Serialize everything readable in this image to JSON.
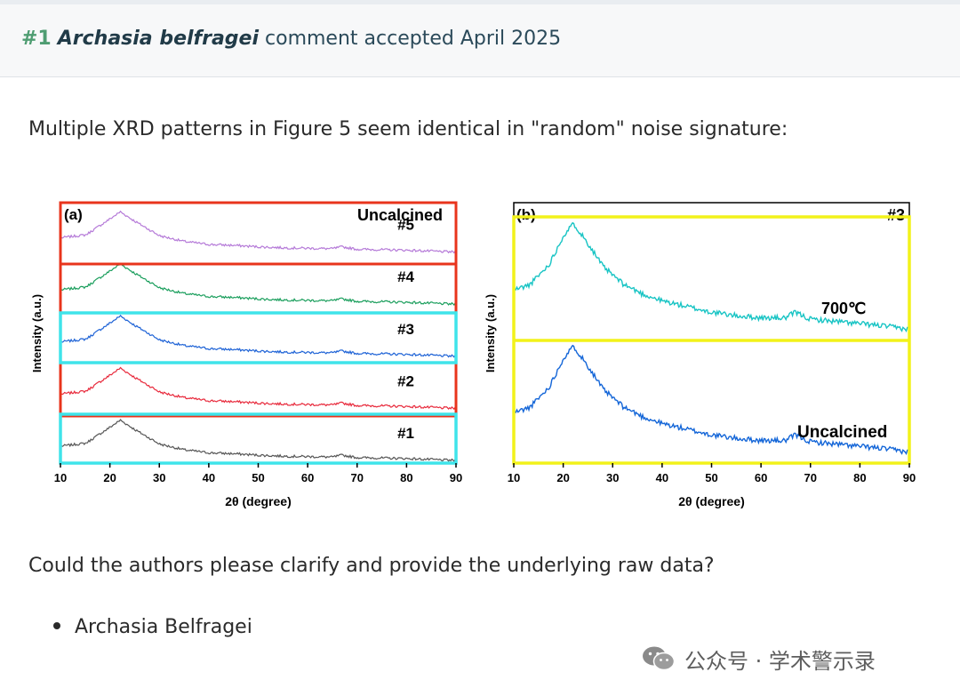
{
  "comment": {
    "number": "#1",
    "author": "Archasia belfragei",
    "status": "comment accepted April 2025"
  },
  "body": {
    "paragraph1": "Multiple XRD patterns in Figure 5 seem identical in \"random\" noise signature:",
    "paragraph2": "Could the authors please clarify and provide the underlying raw data?",
    "signature": "Archasia Belfragei"
  },
  "watermark": {
    "text": "公众号 · 学术警示录",
    "icon": "wechat-icon"
  },
  "colors": {
    "red_box": "#e8341c",
    "cyan_box": "#3fe4ea",
    "yellow_box": "#f2f21a",
    "header_number": "#4f9d72"
  },
  "chart_data": [
    {
      "type": "line",
      "panel_label": "(a)",
      "corner_label": "Uncalcined",
      "xlabel": "2θ (degree)",
      "ylabel": "Intensity (a.u.)",
      "xlim": [
        10,
        90
      ],
      "x_ticks": [
        "10",
        "20",
        "30",
        "40",
        "50",
        "60",
        "70",
        "80",
        "90"
      ],
      "series": [
        {
          "name": "#5",
          "color": "#b57ad8",
          "x": [
            10,
            15,
            20,
            22,
            25,
            30,
            35,
            40,
            45,
            50,
            55,
            60,
            65,
            67,
            70,
            75,
            80,
            85,
            90
          ],
          "y": [
            0.38,
            0.44,
            0.78,
            0.92,
            0.72,
            0.42,
            0.3,
            0.24,
            0.22,
            0.19,
            0.17,
            0.16,
            0.15,
            0.19,
            0.14,
            0.13,
            0.12,
            0.1,
            0.08
          ]
        },
        {
          "name": "#4",
          "color": "#1a9e5c",
          "x": [
            10,
            15,
            20,
            22,
            25,
            30,
            35,
            40,
            45,
            50,
            55,
            60,
            65,
            67,
            70,
            75,
            80,
            85,
            90
          ],
          "y": [
            0.38,
            0.44,
            0.78,
            0.92,
            0.72,
            0.42,
            0.3,
            0.24,
            0.22,
            0.19,
            0.17,
            0.16,
            0.15,
            0.19,
            0.14,
            0.13,
            0.12,
            0.1,
            0.08
          ]
        },
        {
          "name": "#3",
          "color": "#1d62d6",
          "x": [
            10,
            15,
            20,
            22,
            25,
            30,
            35,
            40,
            45,
            50,
            55,
            60,
            65,
            67,
            70,
            75,
            80,
            85,
            90
          ],
          "y": [
            0.38,
            0.44,
            0.78,
            0.92,
            0.72,
            0.42,
            0.3,
            0.24,
            0.22,
            0.19,
            0.17,
            0.16,
            0.15,
            0.19,
            0.14,
            0.13,
            0.12,
            0.1,
            0.08
          ]
        },
        {
          "name": "#2",
          "color": "#e82a3c",
          "x": [
            10,
            15,
            20,
            22,
            25,
            30,
            35,
            40,
            45,
            50,
            55,
            60,
            65,
            67,
            70,
            75,
            80,
            85,
            90
          ],
          "y": [
            0.38,
            0.44,
            0.78,
            0.92,
            0.72,
            0.42,
            0.3,
            0.24,
            0.22,
            0.19,
            0.17,
            0.16,
            0.15,
            0.19,
            0.14,
            0.13,
            0.12,
            0.1,
            0.08
          ]
        },
        {
          "name": "#1",
          "color": "#555555",
          "x": [
            10,
            15,
            20,
            22,
            25,
            30,
            35,
            40,
            45,
            50,
            55,
            60,
            65,
            67,
            70,
            75,
            80,
            85,
            90
          ],
          "y": [
            0.38,
            0.44,
            0.78,
            0.92,
            0.72,
            0.42,
            0.3,
            0.24,
            0.22,
            0.19,
            0.17,
            0.16,
            0.15,
            0.19,
            0.14,
            0.13,
            0.12,
            0.1,
            0.08
          ]
        }
      ],
      "annotations": [
        "Uncalcined",
        "#5",
        "#4",
        "#3",
        "#2",
        "#1"
      ],
      "grid": false
    },
    {
      "type": "line",
      "panel_label": "(b)",
      "corner_label": "#3",
      "xlabel": "2θ (degree)",
      "ylabel": "Intensity (a.u.)",
      "xlim": [
        10,
        90
      ],
      "x_ticks": [
        "10",
        "20",
        "30",
        "40",
        "50",
        "60",
        "70",
        "80",
        "90"
      ],
      "series": [
        {
          "name": "700℃",
          "color": "#18c4c4",
          "x": [
            10,
            13,
            17,
            20,
            22,
            25,
            28,
            32,
            36,
            40,
            45,
            50,
            55,
            60,
            65,
            67,
            70,
            75,
            80,
            85,
            90
          ],
          "y": [
            0.4,
            0.44,
            0.62,
            0.88,
            0.98,
            0.8,
            0.6,
            0.45,
            0.36,
            0.3,
            0.25,
            0.2,
            0.17,
            0.15,
            0.15,
            0.2,
            0.14,
            0.12,
            0.1,
            0.08,
            0.05
          ]
        },
        {
          "name": "Uncalcined",
          "color": "#1466d8",
          "x": [
            10,
            13,
            17,
            20,
            22,
            25,
            28,
            32,
            36,
            40,
            45,
            50,
            55,
            60,
            65,
            67,
            70,
            75,
            80,
            85,
            90
          ],
          "y": [
            0.4,
            0.44,
            0.62,
            0.88,
            0.98,
            0.8,
            0.6,
            0.45,
            0.36,
            0.3,
            0.25,
            0.2,
            0.17,
            0.15,
            0.15,
            0.2,
            0.14,
            0.12,
            0.1,
            0.08,
            0.05
          ]
        }
      ],
      "annotations": [
        "700℃",
        "Uncalcined"
      ],
      "grid": false
    }
  ]
}
